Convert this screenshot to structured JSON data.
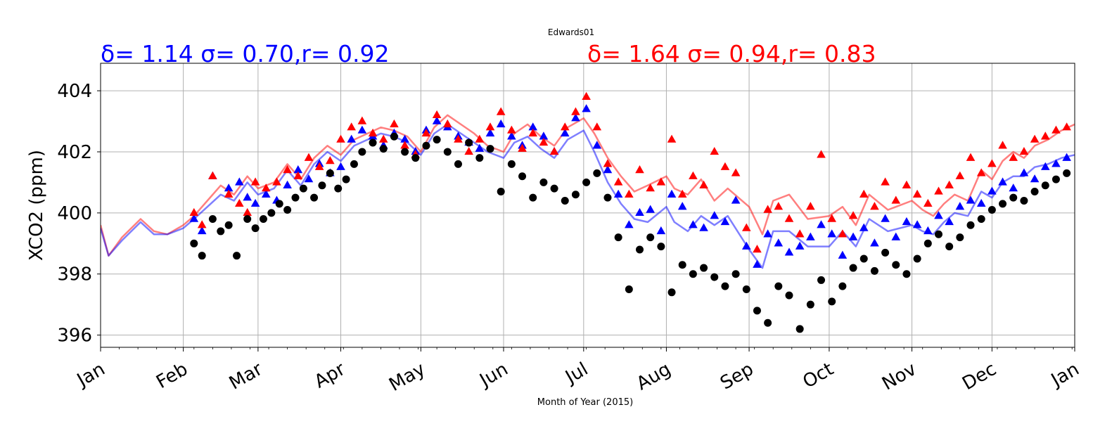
{
  "chart_data": {
    "type": "line",
    "title": "Edwards01",
    "xlabel": "Month of Year (2015)",
    "ylabel": "XCO2 (ppm)",
    "xlim": [
      0,
      365
    ],
    "ylim": [
      395.6,
      404.9
    ],
    "yticks": [
      396,
      398,
      400,
      402,
      404
    ],
    "yticklabels": [
      "396",
      "398",
      "400",
      "402",
      "404"
    ],
    "xticks": [
      0,
      31,
      59,
      90,
      120,
      151,
      181,
      212,
      243,
      273,
      304,
      334,
      365
    ],
    "xticklabels": [
      "Jan",
      "Feb",
      "Mar",
      "Apr",
      "May",
      "Jun",
      "Jul",
      "Aug",
      "Sep",
      "Oct",
      "Nov",
      "Dec",
      "Jan"
    ],
    "grid": true,
    "stats": [
      {
        "text": "δ= 1.14 σ= 0.70,r= 0.92",
        "color": "#0000ff"
      },
      {
        "text": "δ= 1.64 σ= 0.94,r= 0.83",
        "color": "#ff0000"
      }
    ],
    "series": [
      {
        "kind": "line",
        "color": "#ff0000",
        "opacity": 0.5,
        "x": [
          0,
          3,
          8,
          15,
          20,
          25,
          31,
          35,
          40,
          45,
          50,
          55,
          59,
          65,
          70,
          75,
          80,
          85,
          90,
          95,
          100,
          105,
          110,
          115,
          120,
          125,
          130,
          135,
          140,
          145,
          151,
          155,
          160,
          165,
          170,
          175,
          181,
          185,
          190,
          195,
          200,
          205,
          212,
          215,
          220,
          225,
          230,
          235,
          243,
          248,
          252,
          258,
          265,
          273,
          278,
          283,
          288,
          295,
          304,
          308,
          312,
          316,
          320,
          325,
          330,
          334,
          338,
          342,
          346,
          350,
          355,
          360,
          365
        ],
        "y": [
          399.6,
          398.6,
          399.2,
          399.8,
          399.4,
          399.3,
          399.6,
          399.9,
          400.4,
          400.9,
          400.6,
          401.2,
          400.8,
          401.0,
          401.6,
          401.1,
          401.8,
          402.2,
          401.9,
          402.4,
          402.6,
          402.8,
          402.7,
          402.5,
          402.0,
          402.8,
          403.2,
          402.9,
          402.6,
          402.2,
          402.0,
          402.6,
          402.9,
          402.5,
          402.2,
          402.8,
          403.1,
          402.6,
          401.8,
          401.2,
          400.7,
          400.9,
          401.2,
          400.8,
          400.6,
          401.1,
          400.4,
          400.8,
          400.2,
          399.3,
          400.4,
          400.6,
          399.8,
          399.9,
          400.2,
          399.6,
          400.6,
          400.1,
          400.4,
          400.1,
          399.9,
          400.3,
          400.6,
          400.4,
          401.4,
          401.1,
          401.7,
          402.0,
          401.8,
          402.2,
          402.4,
          402.7,
          402.9
        ]
      },
      {
        "kind": "line",
        "color": "#0000ff",
        "opacity": 0.5,
        "x": [
          0,
          3,
          8,
          15,
          20,
          25,
          31,
          35,
          40,
          45,
          50,
          55,
          59,
          65,
          70,
          75,
          80,
          85,
          90,
          95,
          100,
          105,
          110,
          115,
          120,
          125,
          130,
          135,
          140,
          145,
          151,
          155,
          160,
          165,
          170,
          175,
          181,
          185,
          190,
          195,
          200,
          205,
          212,
          215,
          220,
          225,
          230,
          235,
          243,
          248,
          252,
          258,
          265,
          273,
          278,
          283,
          288,
          295,
          304,
          308,
          312,
          316,
          320,
          325,
          330,
          334,
          338,
          342,
          346,
          350,
          355,
          360,
          365
        ],
        "y": [
          399.5,
          398.6,
          399.1,
          399.7,
          399.3,
          399.3,
          399.5,
          399.8,
          400.2,
          400.6,
          400.4,
          401.0,
          400.6,
          400.8,
          401.4,
          400.9,
          401.6,
          402.0,
          401.7,
          402.2,
          402.4,
          402.6,
          402.5,
          402.3,
          401.9,
          402.6,
          402.9,
          402.6,
          402.3,
          402.0,
          401.8,
          402.3,
          402.5,
          402.1,
          401.8,
          402.4,
          402.7,
          402.0,
          401.0,
          400.3,
          399.8,
          399.7,
          400.2,
          399.7,
          399.4,
          399.9,
          399.6,
          399.9,
          398.8,
          398.2,
          399.4,
          399.4,
          398.9,
          398.9,
          399.4,
          398.9,
          399.8,
          399.4,
          399.6,
          399.4,
          399.3,
          399.7,
          400.0,
          399.9,
          400.7,
          400.5,
          401.0,
          401.2,
          401.2,
          401.5,
          401.6,
          401.8,
          401.9
        ]
      },
      {
        "kind": "points",
        "marker": "triangle",
        "color": "#0000ff",
        "x": [
          35,
          38,
          42,
          48,
          52,
          55,
          58,
          62,
          66,
          70,
          74,
          78,
          82,
          86,
          90,
          94,
          98,
          102,
          106,
          110,
          114,
          118,
          122,
          126,
          130,
          134,
          138,
          142,
          146,
          150,
          154,
          158,
          162,
          166,
          170,
          174,
          178,
          182,
          186,
          190,
          194,
          198,
          202,
          206,
          210,
          214,
          218,
          222,
          226,
          230,
          234,
          238,
          242,
          246,
          250,
          254,
          258,
          262,
          266,
          270,
          274,
          278,
          282,
          286,
          290,
          294,
          298,
          302,
          306,
          310,
          314,
          318,
          322,
          326,
          330,
          334,
          338,
          342,
          346,
          350,
          354,
          358,
          362
        ],
        "y": [
          399.8,
          399.4,
          401.2,
          400.8,
          401.0,
          400.5,
          400.3,
          400.6,
          400.4,
          400.9,
          401.4,
          401.1,
          401.6,
          401.3,
          401.5,
          402.4,
          402.7,
          402.5,
          402.2,
          402.6,
          402.4,
          402.0,
          402.7,
          403.0,
          402.8,
          402.5,
          402.3,
          402.1,
          402.6,
          402.9,
          402.5,
          402.2,
          402.8,
          402.5,
          402.0,
          402.6,
          403.1,
          403.4,
          402.2,
          401.4,
          400.6,
          399.6,
          400.0,
          400.1,
          399.4,
          400.6,
          400.2,
          399.6,
          399.5,
          399.9,
          399.7,
          400.4,
          398.9,
          398.3,
          399.3,
          399.0,
          398.7,
          398.9,
          399.2,
          399.6,
          399.3,
          398.6,
          399.2,
          399.5,
          399.0,
          399.8,
          399.2,
          399.7,
          399.6,
          399.4,
          399.9,
          399.7,
          400.2,
          400.4,
          400.3,
          400.7,
          401.0,
          400.8,
          401.3,
          401.1,
          401.5,
          401.6,
          401.8
        ]
      },
      {
        "kind": "points",
        "marker": "triangle",
        "color": "#ff0000",
        "x": [
          35,
          38,
          42,
          48,
          52,
          55,
          58,
          62,
          66,
          70,
          74,
          78,
          82,
          86,
          90,
          94,
          98,
          102,
          106,
          110,
          114,
          118,
          122,
          126,
          130,
          134,
          138,
          142,
          146,
          150,
          154,
          158,
          162,
          166,
          170,
          174,
          178,
          182,
          186,
          190,
          194,
          198,
          202,
          206,
          210,
          214,
          218,
          222,
          226,
          230,
          234,
          238,
          242,
          246,
          250,
          254,
          258,
          262,
          266,
          270,
          274,
          278,
          282,
          286,
          290,
          294,
          298,
          302,
          306,
          310,
          314,
          318,
          322,
          326,
          330,
          334,
          338,
          342,
          346,
          350,
          354,
          358,
          362
        ],
        "y": [
          400.0,
          399.6,
          401.2,
          400.6,
          400.3,
          400.0,
          401.0,
          400.8,
          401.0,
          401.4,
          401.2,
          401.8,
          401.5,
          401.7,
          402.4,
          402.8,
          403.0,
          402.6,
          402.4,
          402.9,
          402.2,
          401.9,
          402.6,
          403.2,
          402.9,
          402.4,
          402.0,
          402.4,
          402.8,
          403.3,
          402.7,
          402.1,
          402.6,
          402.3,
          402.0,
          402.8,
          403.3,
          403.8,
          402.8,
          401.6,
          401.0,
          400.6,
          401.4,
          400.8,
          401.0,
          402.4,
          400.6,
          401.2,
          400.9,
          402.0,
          401.5,
          401.3,
          399.5,
          398.8,
          400.1,
          400.2,
          399.8,
          399.3,
          400.2,
          401.9,
          399.8,
          399.3,
          399.9,
          400.6,
          400.2,
          401.0,
          400.4,
          400.9,
          400.6,
          400.3,
          400.7,
          400.9,
          401.2,
          401.8,
          401.3,
          401.6,
          402.2,
          401.8,
          402.0,
          402.4,
          402.5,
          402.7,
          402.8
        ]
      },
      {
        "kind": "points",
        "marker": "circle",
        "color": "#000000",
        "x": [
          35,
          38,
          42,
          45,
          48,
          51,
          55,
          58,
          61,
          64,
          67,
          70,
          73,
          76,
          80,
          83,
          86,
          89,
          92,
          95,
          98,
          102,
          106,
          110,
          114,
          118,
          122,
          126,
          130,
          134,
          138,
          142,
          146,
          150,
          154,
          158,
          162,
          166,
          170,
          174,
          178,
          182,
          186,
          190,
          194,
          198,
          202,
          206,
          210,
          214,
          218,
          222,
          226,
          230,
          234,
          238,
          242,
          246,
          250,
          254,
          258,
          262,
          266,
          270,
          274,
          278,
          282,
          286,
          290,
          294,
          298,
          302,
          306,
          310,
          314,
          318,
          322,
          326,
          330,
          334,
          338,
          342,
          346,
          350,
          354,
          358,
          362
        ],
        "y": [
          399.0,
          398.6,
          399.8,
          399.4,
          399.6,
          398.6,
          399.8,
          399.5,
          399.8,
          400.0,
          400.3,
          400.1,
          400.5,
          400.8,
          400.5,
          400.9,
          401.3,
          400.8,
          401.1,
          401.6,
          402.0,
          402.3,
          402.1,
          402.5,
          402.0,
          401.8,
          402.2,
          402.4,
          402.0,
          401.6,
          402.3,
          401.8,
          402.1,
          400.7,
          401.6,
          401.2,
          400.5,
          401.0,
          400.8,
          400.4,
          400.6,
          401.0,
          401.3,
          400.5,
          399.2,
          397.5,
          398.8,
          399.2,
          398.9,
          397.4,
          398.3,
          398.0,
          398.2,
          397.9,
          397.6,
          398.0,
          397.5,
          396.8,
          396.4,
          397.6,
          397.3,
          396.2,
          397.0,
          397.8,
          397.1,
          397.6,
          398.2,
          398.5,
          398.1,
          398.7,
          398.3,
          398.0,
          398.5,
          399.0,
          399.3,
          398.9,
          399.2,
          399.6,
          399.8,
          400.1,
          400.3,
          400.5,
          400.4,
          400.7,
          400.9,
          401.1,
          401.3
        ]
      }
    ]
  }
}
